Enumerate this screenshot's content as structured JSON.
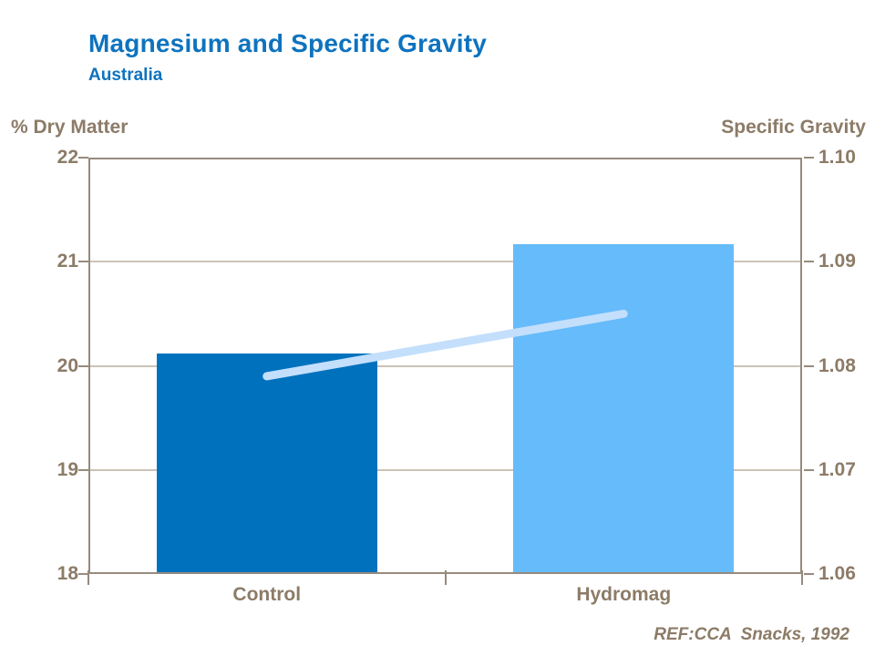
{
  "header": {
    "title": "Magnesium and Specific Gravity",
    "subtitle": "Australia"
  },
  "footer": {
    "reference": "REF:CCA  Snacks, 1992"
  },
  "chart_data": {
    "type": "bar",
    "title": "Magnesium and Specific Gravity",
    "subtitle": "Australia",
    "categories": [
      "Control",
      "Hydromag"
    ],
    "series": [
      {
        "name": "% Dry Matter",
        "type": "bar",
        "axis": "left",
        "values": [
          20.1,
          21.15
        ],
        "colors": [
          "#0071BD",
          "#66BBFA"
        ]
      },
      {
        "name": "Specific Gravity",
        "type": "line",
        "axis": "right",
        "values": [
          1.079,
          1.085
        ],
        "color": "#C3DFFB"
      }
    ],
    "left_axis": {
      "title": "% Dry Matter",
      "min": 18,
      "max": 22,
      "ticks": [
        "22",
        "21",
        "20",
        "19",
        "18"
      ],
      "tick_values": [
        22,
        21,
        20,
        19,
        18
      ]
    },
    "right_axis": {
      "title": "Specific Gravity",
      "min": 1.06,
      "max": 1.1,
      "ticks": [
        "1.10",
        "1.09",
        "1.08",
        "1.07",
        "1.06"
      ],
      "tick_values": [
        1.1,
        1.09,
        1.08,
        1.07,
        1.06
      ]
    },
    "grid": true,
    "legend": "none",
    "colors": {
      "title": "#0E73BE",
      "axis_text": "#8C7B67",
      "frame": "#978B7D",
      "gridline": "#CCC3B8"
    }
  }
}
